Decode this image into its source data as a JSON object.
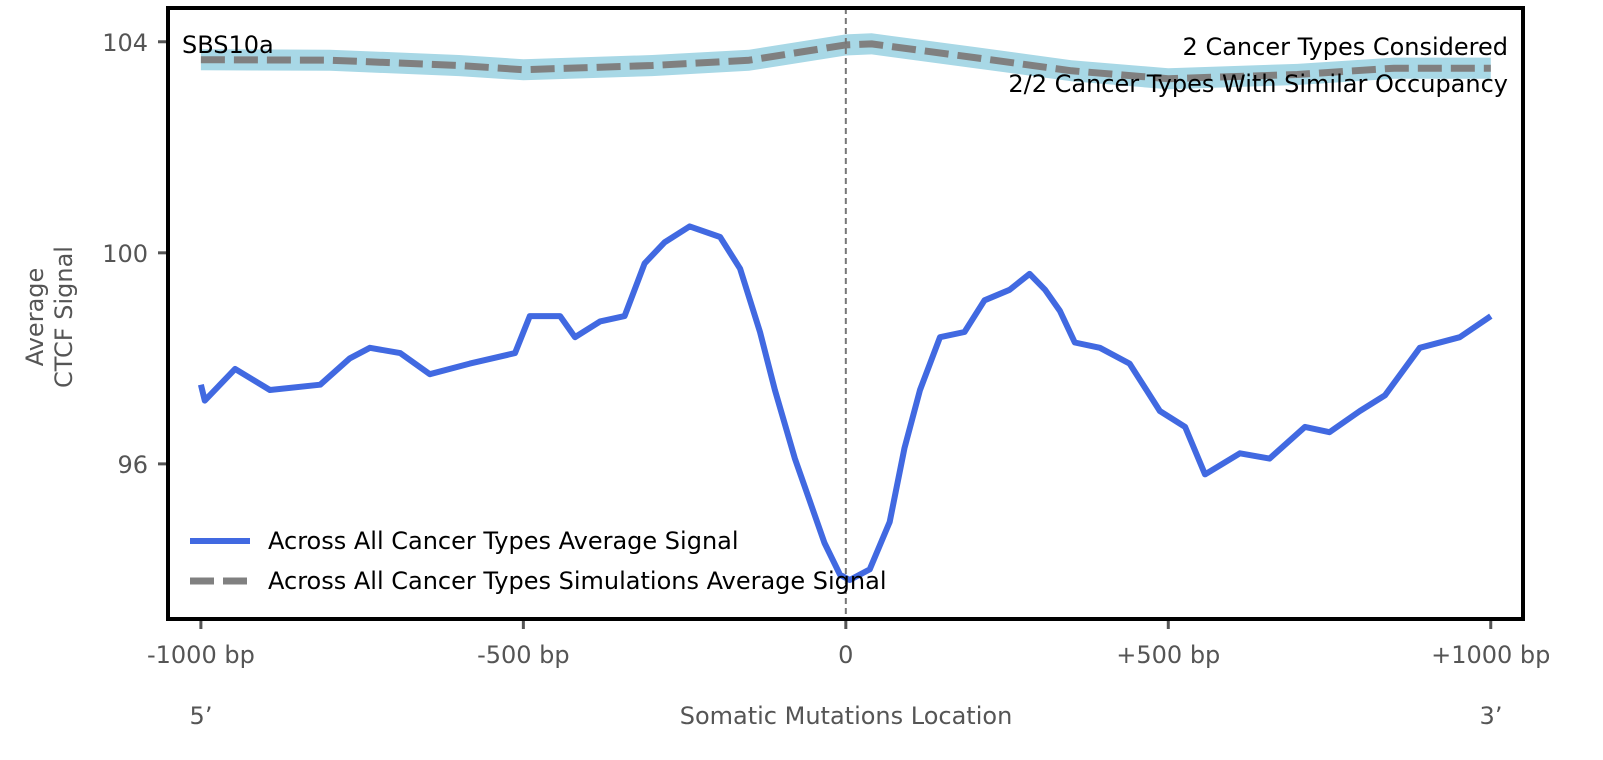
{
  "chart_data": {
    "type": "line",
    "title": "SBS10a",
    "annotations": [
      "2 Cancer Types Considered",
      "2/2 Cancer Types With Similar Occupancy"
    ],
    "xlabel": "Somatic Mutations Location",
    "ylabel": [
      "Average",
      "CTCF Signal"
    ],
    "x_end_labels": {
      "left": "5’",
      "right": "3’"
    },
    "xlim": [
      -1051,
      1050
    ],
    "ylim": [
      93.06,
      104.64
    ],
    "xticks": [
      {
        "value": -1000,
        "label": "-1000 bp"
      },
      {
        "value": -500,
        "label": "-500 bp"
      },
      {
        "value": 0,
        "label": "0"
      },
      {
        "value": 500,
        "label": "+500 bp"
      },
      {
        "value": 1000,
        "label": "+1000 bp"
      }
    ],
    "yticks": [
      {
        "value": 96,
        "label": "96"
      },
      {
        "value": 100,
        "label": "100"
      },
      {
        "value": 104,
        "label": "104"
      }
    ],
    "vline": 0,
    "grid": false,
    "legend_position": "bottom-left",
    "series": [
      {
        "name": "Across All Cancer Types Average Signal",
        "color": "#4169e1",
        "style": "solid",
        "x": [
          -1000,
          -994,
          -947,
          -893,
          -815,
          -769,
          -738,
          -691,
          -645,
          -583,
          -513,
          -490,
          -443,
          -420,
          -381,
          -343,
          -312,
          -281,
          -242,
          -195,
          -164,
          -133,
          -110,
          -79,
          -56,
          -33,
          -9,
          6,
          37,
          68,
          91,
          115,
          146,
          184,
          215,
          254,
          285,
          309,
          332,
          355,
          394,
          440,
          487,
          526,
          557,
          611,
          657,
          712,
          750,
          797,
          836,
          890,
          952,
          1000
        ],
        "y": [
          97.5,
          97.2,
          97.8,
          97.4,
          97.5,
          98.0,
          98.2,
          98.1,
          97.7,
          97.9,
          98.1,
          98.8,
          98.8,
          98.4,
          98.7,
          98.8,
          99.8,
          100.2,
          100.5,
          100.3,
          99.7,
          98.5,
          97.4,
          96.1,
          95.3,
          94.5,
          93.9,
          93.8,
          94.0,
          94.9,
          96.3,
          97.4,
          98.4,
          98.5,
          99.1,
          99.3,
          99.6,
          99.3,
          98.9,
          98.3,
          98.2,
          97.9,
          97.0,
          96.7,
          95.8,
          96.2,
          96.1,
          96.7,
          96.6,
          97.0,
          97.3,
          98.2,
          98.4,
          98.8
        ]
      },
      {
        "name": "Across All Cancer Types Simulations Average Signal",
        "color": "#808080",
        "band_color": "#a8d8e6",
        "band_halfwidth": 0.2,
        "style": "dashed",
        "x": [
          -1000,
          -800,
          -600,
          -500,
          -300,
          -150,
          0,
          40,
          200,
          350,
          500,
          700,
          850,
          1000
        ],
        "y": [
          103.66,
          103.65,
          103.55,
          103.47,
          103.55,
          103.65,
          103.94,
          103.96,
          103.7,
          103.45,
          103.3,
          103.38,
          103.5,
          103.5
        ]
      }
    ]
  }
}
